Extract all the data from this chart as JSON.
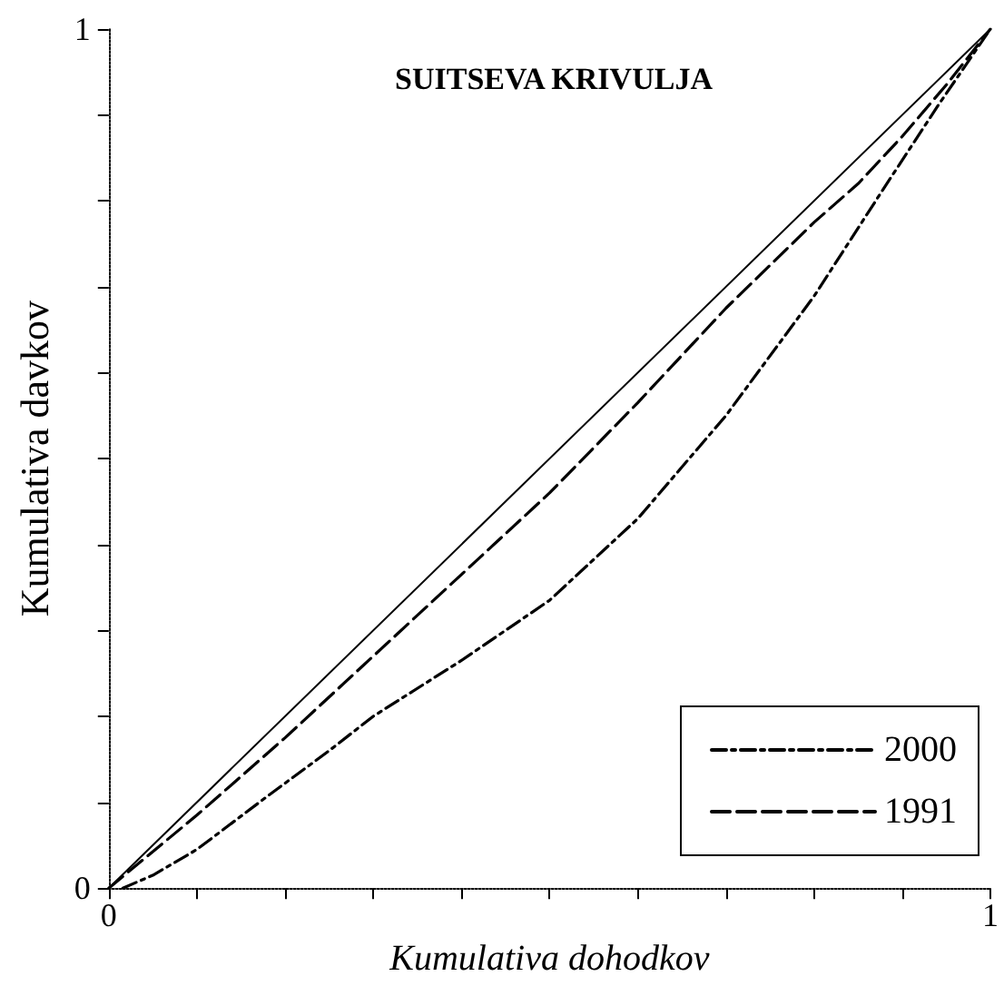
{
  "chart_data": {
    "type": "line",
    "title": "SUITSEVA KRIVULJA",
    "xlabel": "Kumulativa dohodkov",
    "ylabel": "Kumulativa davkov",
    "xlim": [
      0,
      1
    ],
    "ylim": [
      0,
      1
    ],
    "xticks": [
      0,
      {
        "value": 0.1,
        "label": null
      },
      {
        "value": 0.2,
        "label": null
      },
      {
        "value": 0.3,
        "label": null
      },
      {
        "value": 0.4,
        "label": null
      },
      {
        "value": 0.5,
        "label": null
      },
      {
        "value": 0.6,
        "label": null
      },
      {
        "value": 0.7,
        "label": null
      },
      {
        "value": 0.8,
        "label": null
      },
      {
        "value": 0.9,
        "label": null
      },
      1
    ],
    "yticks": [
      0,
      {
        "value": 0.1,
        "label": null
      },
      {
        "value": 0.2,
        "label": null
      },
      {
        "value": 0.3,
        "label": null
      },
      {
        "value": 0.4,
        "label": null
      },
      {
        "value": 0.5,
        "label": null
      },
      {
        "value": 0.6,
        "label": null
      },
      {
        "value": 0.7,
        "label": null
      },
      {
        "value": 0.8,
        "label": null
      },
      {
        "value": 0.9,
        "label": null
      },
      1
    ],
    "grid": false,
    "legend": "bottom right",
    "marker": "none",
    "series": [
      {
        "color": "#000000",
        "line_style": "solid",
        "x": [
          0,
          1
        ],
        "values": [
          0,
          1
        ]
      },
      {
        "name": "2000",
        "color": "#000000",
        "line_style": "dashdot",
        "x": [
          0.016,
          0.05,
          0.1,
          0.18,
          0.25,
          0.3,
          0.4,
          0.5,
          0.6,
          0.7,
          0.8,
          0.88,
          0.94,
          1
        ],
        "values": [
          0,
          0.015,
          0.045,
          0.107,
          0.16,
          0.2,
          0.265,
          0.335,
          0.43,
          0.55,
          0.689,
          0.816,
          0.91,
          1
        ]
      },
      {
        "name": "1991",
        "color": "#000000",
        "line_style": "dashed",
        "x": [
          0,
          0.1,
          0.2,
          0.3,
          0.4,
          0.5,
          0.6,
          0.7,
          0.8,
          0.85,
          0.9,
          0.95,
          1
        ],
        "values": [
          0,
          0.085,
          0.175,
          0.27,
          0.365,
          0.46,
          0.565,
          0.675,
          0.775,
          0.82,
          0.875,
          0.935,
          1
        ]
      }
    ]
  }
}
